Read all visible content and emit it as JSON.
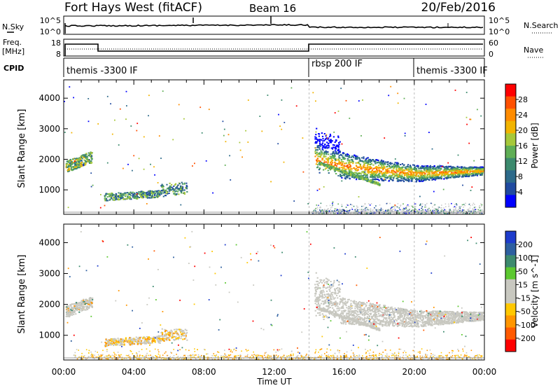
{
  "header": {
    "title": "Fort Hays West (fitACF)",
    "beam": "Beam 16",
    "date": "20/Feb/2016"
  },
  "left_labels": {
    "nsky": "N.Sky",
    "freq": "Freq.",
    "mhz": "[MHz]",
    "cpid": "CPID"
  },
  "right_labels": {
    "nsearch": "N.Search",
    "nave": "Nave"
  },
  "noise_ticks": {
    "left": [
      "10^5",
      "10^0"
    ],
    "right": [
      "10^5",
      "10^0"
    ]
  },
  "freq_ticks": [
    "18",
    "8"
  ],
  "nave_ticks": [
    "60",
    "0"
  ],
  "cpid": [
    "themis -3300 IF",
    "rbsp 200 IF",
    "themis -3300 IF"
  ],
  "x_axis": {
    "label": "Time UT",
    "ticks": [
      "00:00",
      "04:00",
      "08:00",
      "12:00",
      "16:00",
      "20:00",
      "00:00"
    ]
  },
  "colors": {
    "power_scale": [
      "#0000ff",
      "#204aa0",
      "#2d6a8a",
      "#3c8a6e",
      "#5fae55",
      "#a6c83a",
      "#f2b400",
      "#ff8c00",
      "#ff5000",
      "#ff0000"
    ],
    "velocity_scale": [
      "#ff0000",
      "#ff5a00",
      "#ff9600",
      "#ffc800",
      "#c8c8c0",
      "#c8c8c0",
      "#5cc830",
      "#3c8a6e",
      "#2d5fa0",
      "#1e3ccc"
    ],
    "ground": "#c8c8c0"
  },
  "chart_data": [
    {
      "type": "heatmap",
      "title": "",
      "xlabel": "Time UT",
      "ylabel": "Slant Range [km]",
      "xlim": [
        0,
        24
      ],
      "ylim": [
        200,
        4600
      ],
      "yticks": [
        1000,
        2000,
        3000,
        4000
      ],
      "colorbar": {
        "label": "Power [dB]",
        "range": [
          0,
          32
        ],
        "ticks": [
          "4",
          "8",
          "12",
          "16",
          "20",
          "24",
          "28"
        ]
      },
      "features": [
        {
          "x": [
            0.1,
            1.6
          ],
          "y": [
            1700,
            2300
          ],
          "value_db": 12
        },
        {
          "x": [
            2.3,
            7.0
          ],
          "y": [
            600,
            1300
          ],
          "value_db": 10
        },
        {
          "x": [
            14.3,
            23.9
          ],
          "y": [
            1300,
            2800
          ],
          "value_db": 22
        },
        {
          "x": [
            14.2,
            23.9
          ],
          "y": [
            250,
            450
          ],
          "value_db": 6
        }
      ]
    },
    {
      "type": "heatmap",
      "title": "",
      "xlabel": "Time UT",
      "ylabel": "Slant Range [km]",
      "xlim": [
        0,
        24
      ],
      "ylim": [
        200,
        4600
      ],
      "yticks": [
        1000,
        2000,
        3000,
        4000
      ],
      "colorbar": {
        "label": "Velocity [m s^-1]",
        "range": [
          -250,
          250
        ],
        "ticks": [
          "200",
          "100",
          "50",
          "15",
          "-15",
          "-50",
          "-100",
          "-200"
        ]
      },
      "features": [
        {
          "x": [
            0.1,
            1.6
          ],
          "y": [
            1700,
            2300
          ],
          "value_ms": 0
        },
        {
          "x": [
            2.3,
            7.0
          ],
          "y": [
            600,
            1300
          ],
          "value_ms": -60
        },
        {
          "x": [
            14.3,
            23.9
          ],
          "y": [
            1300,
            2800
          ],
          "value_ms": 0
        },
        {
          "x": [
            8.0,
            23.9
          ],
          "y": [
            250,
            450
          ],
          "value_ms": -40
        }
      ]
    }
  ]
}
